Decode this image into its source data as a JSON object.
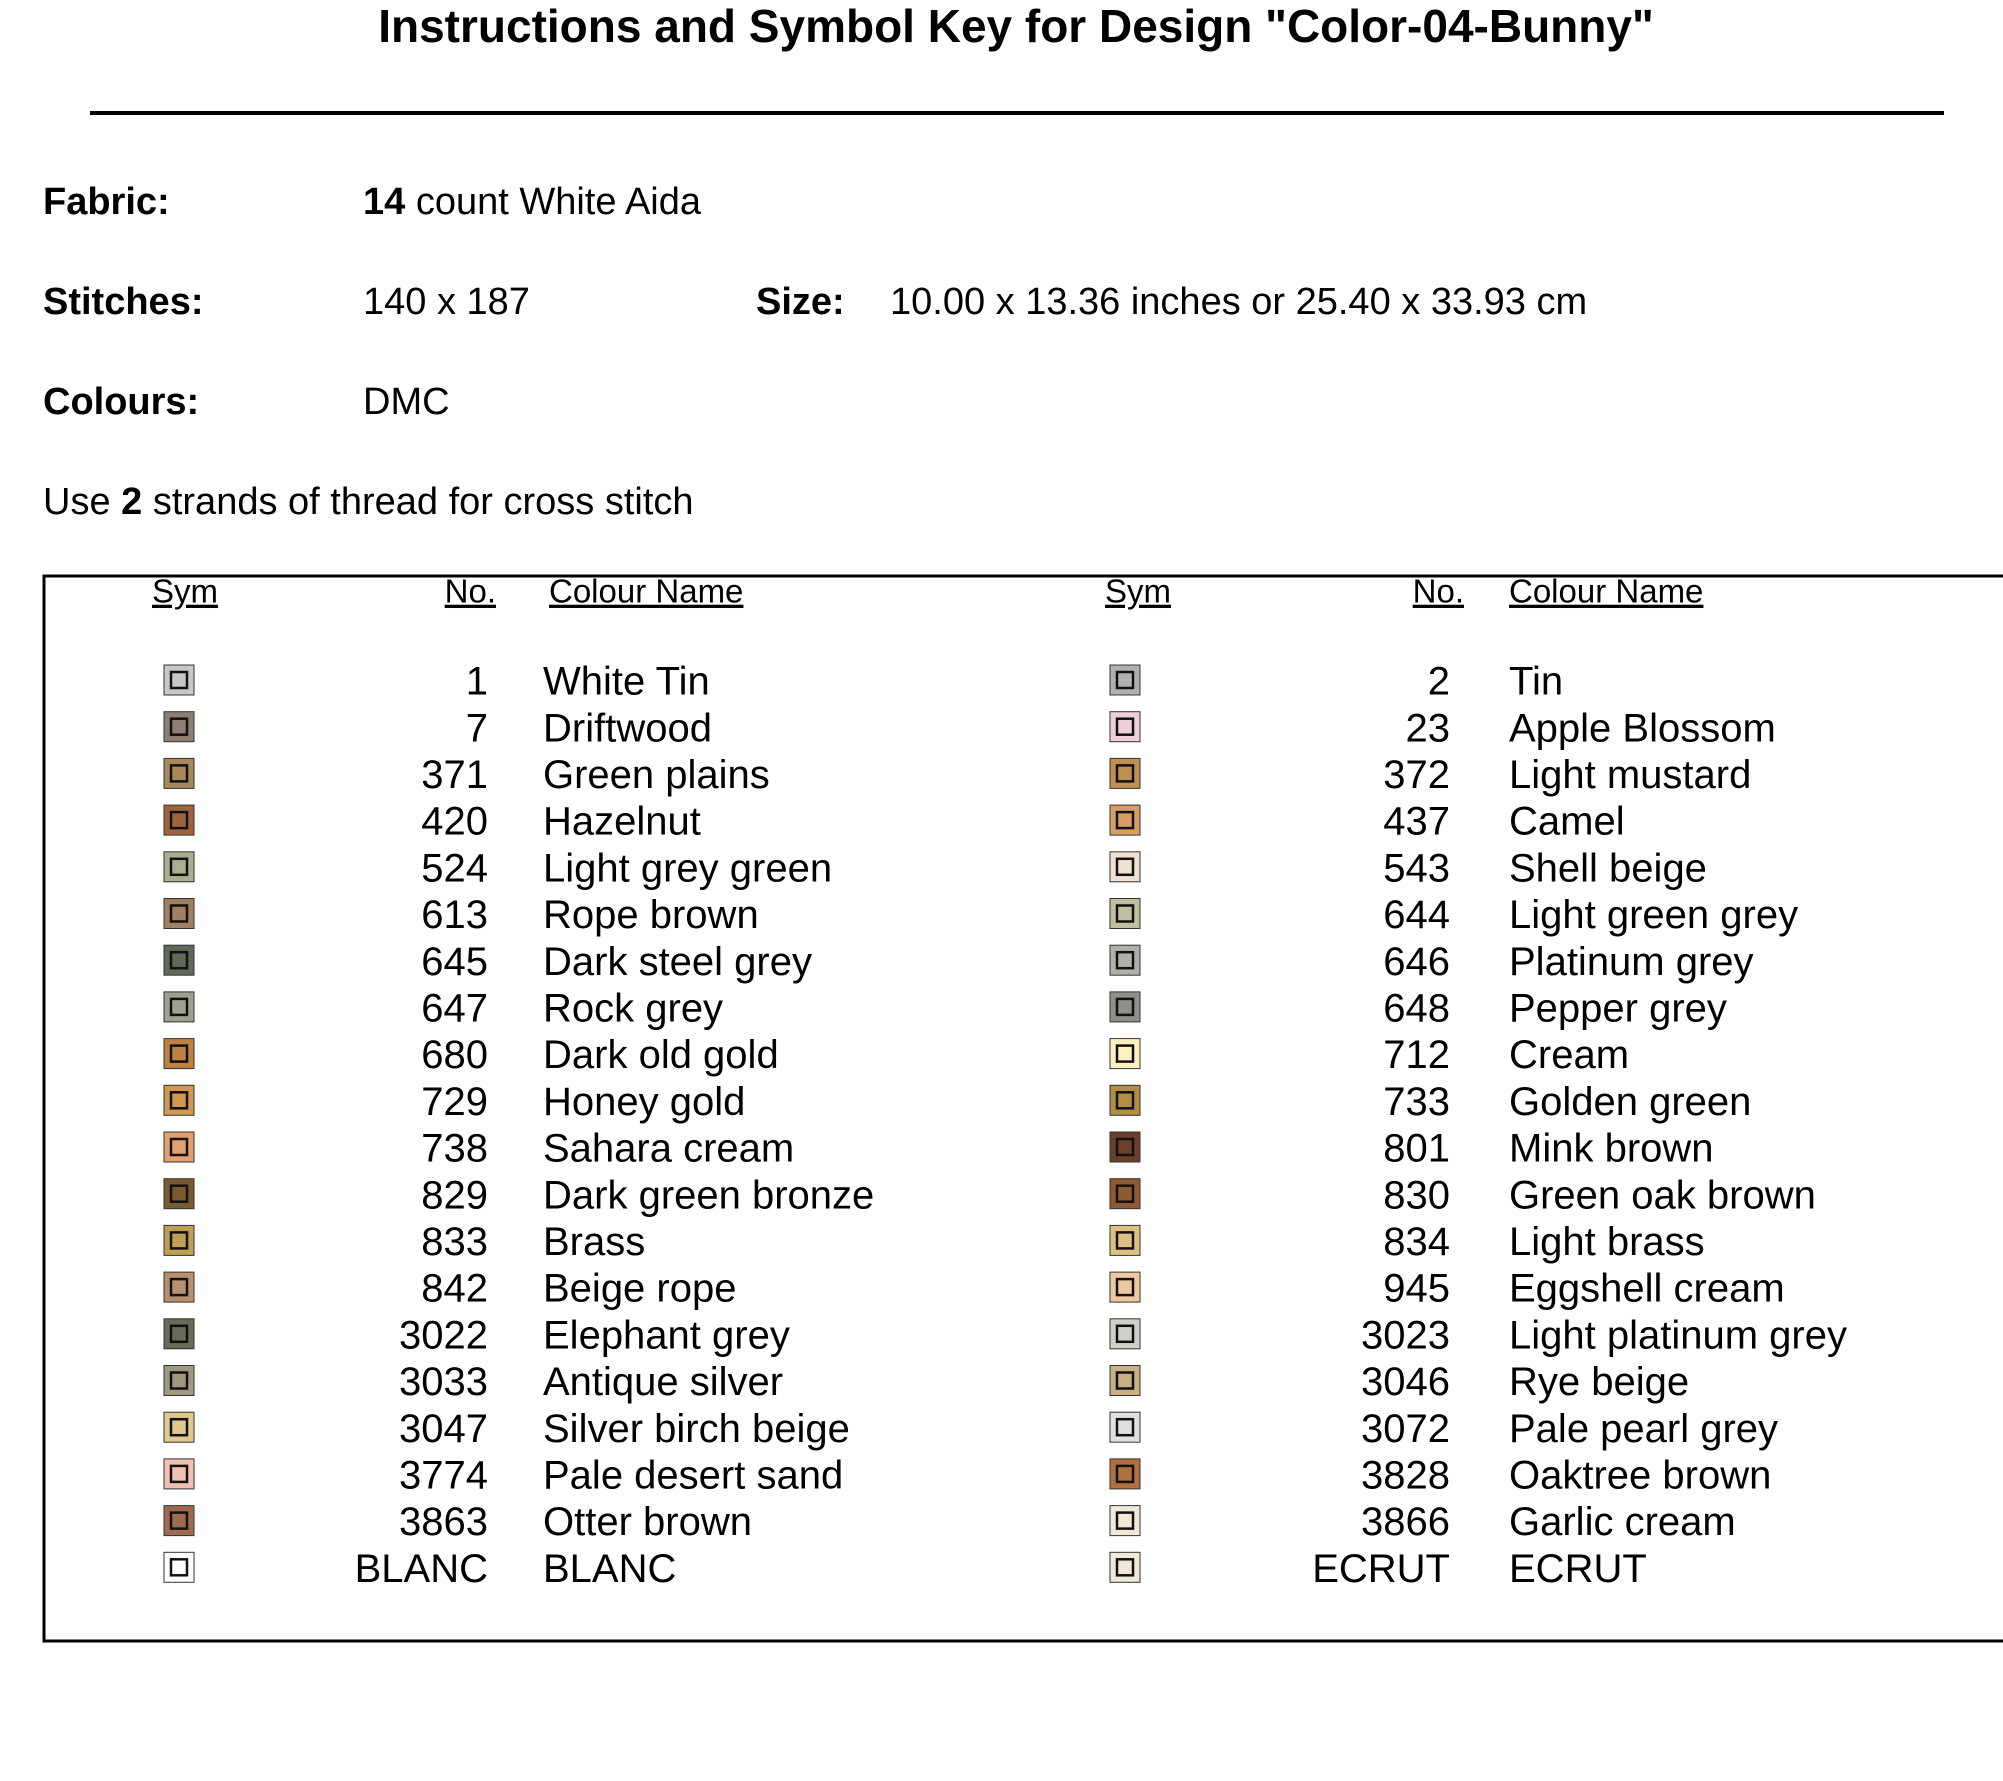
{
  "title": "Instructions and Symbol Key for Design \"Color-04-Bunny\"",
  "fabric": {
    "label": "Fabric:",
    "count": "14",
    "text": "count White Aida"
  },
  "stitches": {
    "label": "Stitches:",
    "value": "140 x 187"
  },
  "size": {
    "label": "Size:",
    "value": "10.00 x 13.36 inches or 25.40 x 33.93 cm"
  },
  "colours": {
    "label": "Colours:",
    "value": "DMC"
  },
  "instruction": {
    "before": "Use",
    "strands": "2",
    "after": "strands of thread for cross stitch"
  },
  "table": {
    "headers": [
      "Sym",
      "No.",
      "Colour Name"
    ],
    "left": [
      {
        "no": "1",
        "name": "White Tin",
        "color": "#c8c8c8"
      },
      {
        "no": "7",
        "name": "Driftwood",
        "color": "#8e7f72"
      },
      {
        "no": "371",
        "name": "Green plains",
        "color": "#a8875a"
      },
      {
        "no": "420",
        "name": "Hazelnut",
        "color": "#a0643c"
      },
      {
        "no": "524",
        "name": "Light grey green",
        "color": "#a8b090"
      },
      {
        "no": "613",
        "name": "Rope brown",
        "color": "#a08060"
      },
      {
        "no": "645",
        "name": "Dark steel grey",
        "color": "#606a58"
      },
      {
        "no": "647",
        "name": "Rock grey",
        "color": "#a0a090"
      },
      {
        "no": "680",
        "name": "Dark old gold",
        "color": "#c08040"
      },
      {
        "no": "729",
        "name": "Honey gold",
        "color": "#d09850"
      },
      {
        "no": "738",
        "name": "Sahara cream",
        "color": "#e0a070"
      },
      {
        "no": "829",
        "name": "Dark green bronze",
        "color": "#7a5a30"
      },
      {
        "no": "833",
        "name": "Brass",
        "color": "#c0a050"
      },
      {
        "no": "842",
        "name": "Beige rope",
        "color": "#b89070"
      },
      {
        "no": "3022",
        "name": "Elephant grey",
        "color": "#6a6a58"
      },
      {
        "no": "3033",
        "name": "Antique silver",
        "color": "#a09880"
      },
      {
        "no": "3047",
        "name": "Silver birch beige",
        "color": "#e0c890"
      },
      {
        "no": "3774",
        "name": "Pale desert sand",
        "color": "#f0c0b0"
      },
      {
        "no": "3863",
        "name": "Otter brown",
        "color": "#a06a50"
      },
      {
        "no": "BLANC",
        "name": "BLANC",
        "color": "#ffffff"
      }
    ],
    "right": [
      {
        "no": "2",
        "name": "Tin",
        "color": "#b0b0b0"
      },
      {
        "no": "23",
        "name": "Apple Blossom",
        "color": "#f0d0d8"
      },
      {
        "no": "372",
        "name": "Light mustard",
        "color": "#c09050"
      },
      {
        "no": "437",
        "name": "Camel",
        "color": "#d8a060"
      },
      {
        "no": "543",
        "name": "Shell beige",
        "color": "#f0e0d0"
      },
      {
        "no": "644",
        "name": "Light green grey",
        "color": "#c0c0a0"
      },
      {
        "no": "646",
        "name": "Platinum grey",
        "color": "#b0b0a8"
      },
      {
        "no": "648",
        "name": "Pepper grey",
        "color": "#909088"
      },
      {
        "no": "712",
        "name": "Cream",
        "color": "#fff0c0"
      },
      {
        "no": "733",
        "name": "Golden green",
        "color": "#b09040"
      },
      {
        "no": "801",
        "name": "Mink brown",
        "color": "#6a4028"
      },
      {
        "no": "830",
        "name": "Green oak brown",
        "color": "#905a30"
      },
      {
        "no": "834",
        "name": "Light brass",
        "color": "#e0c080"
      },
      {
        "no": "945",
        "name": "Eggshell cream",
        "color": "#f0c8a0"
      },
      {
        "no": "3023",
        "name": "Light platinum grey",
        "color": "#d0d0c8"
      },
      {
        "no": "3046",
        "name": "Rye beige",
        "color": "#c8b080"
      },
      {
        "no": "3072",
        "name": "Pale pearl grey",
        "color": "#e0e0e0"
      },
      {
        "no": "3828",
        "name": "Oaktree brown",
        "color": "#b07040"
      },
      {
        "no": "3866",
        "name": "Garlic cream",
        "color": "#f0e8d8"
      },
      {
        "no": "ECRUT",
        "name": "ECRUT",
        "color": "#f0e8d8"
      }
    ]
  }
}
